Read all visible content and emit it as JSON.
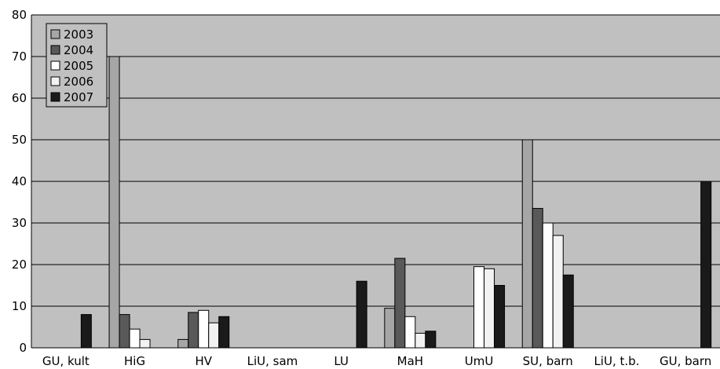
{
  "chart_data": {
    "type": "bar",
    "categories": [
      "GU, kult",
      "HiG",
      "HV",
      "LiU, sam",
      "LU",
      "MaH",
      "UmU",
      "SU, barn",
      "LiU, t.b.",
      "GU, barn"
    ],
    "series": [
      {
        "name": "2003",
        "color": "#a6a6a6",
        "values": [
          0,
          70,
          2,
          0,
          0,
          9.5,
          0,
          50,
          0,
          0
        ]
      },
      {
        "name": "2004",
        "color": "#595959",
        "values": [
          0,
          8,
          8.5,
          0,
          0,
          21.5,
          0,
          33.5,
          0,
          0
        ]
      },
      {
        "name": "2005",
        "color": "#ffffff",
        "values": [
          0,
          4.5,
          9,
          0,
          0,
          7.5,
          19.5,
          30,
          0,
          0
        ]
      },
      {
        "name": "2006",
        "color": "#f2f2f2",
        "values": [
          0,
          2,
          6,
          0,
          0,
          3.5,
          19,
          27,
          0,
          0
        ]
      },
      {
        "name": "2007",
        "color": "#1a1a1a",
        "values": [
          8,
          0,
          7.5,
          0,
          16,
          4,
          15,
          17.5,
          0,
          40
        ]
      }
    ],
    "ylim": [
      0,
      80
    ],
    "yticks": [
      0,
      10,
      20,
      30,
      40,
      50,
      60,
      70,
      80
    ],
    "grid": true,
    "legend": "top-left",
    "plot_background": "#c0c0c0"
  }
}
